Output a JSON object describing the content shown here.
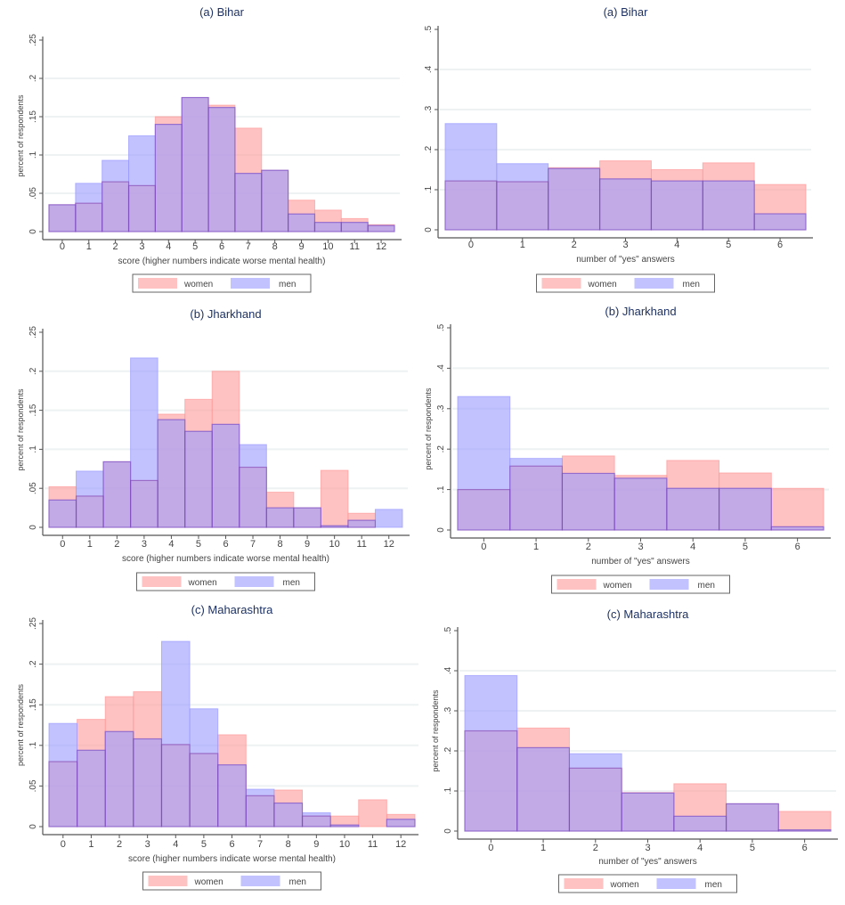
{
  "legend": {
    "women": "women",
    "men": "men"
  },
  "colors": {
    "women": "#ff9a9a",
    "men": "#9a9aff",
    "edge": "#7b3fb0",
    "axis": "#555555",
    "title": "#1e3264",
    "grid": "#eef2f2"
  },
  "chart_data": [
    {
      "type": "bar",
      "id": "bihar-score",
      "title": "(a) Bihar",
      "xlabel": "score (higher numbers indicate worse mental health)",
      "ylabel": "percent of respondents",
      "categories": [
        "0",
        "1",
        "2",
        "3",
        "4",
        "5",
        "6",
        "7",
        "8",
        "9",
        "10",
        "11",
        "12"
      ],
      "yticks": [
        "0",
        ".05",
        ".1",
        ".15",
        ".2",
        ".25"
      ],
      "ylim": [
        0,
        0.25
      ],
      "grid": true,
      "legend_position": "bottom",
      "series": [
        {
          "name": "women",
          "values": [
            0.035,
            0.037,
            0.065,
            0.06,
            0.15,
            0.175,
            0.165,
            0.135,
            0.08,
            0.041,
            0.028,
            0.017,
            0.009
          ]
        },
        {
          "name": "men",
          "values": [
            0.035,
            0.063,
            0.093,
            0.125,
            0.14,
            0.175,
            0.162,
            0.076,
            0.08,
            0.023,
            0.012,
            0.012,
            0.008
          ]
        }
      ]
    },
    {
      "type": "bar",
      "id": "bihar-yes",
      "title": "(a) Bihar",
      "xlabel": "number of \"yes\" answers",
      "ylabel": "percent of respondents",
      "categories": [
        "0",
        "1",
        "2",
        "3",
        "4",
        "5",
        "6"
      ],
      "yticks": [
        "0",
        ".1",
        ".2",
        ".3",
        ".4",
        ".5"
      ],
      "ylim": [
        0,
        0.5
      ],
      "grid": true,
      "legend_position": "bottom",
      "series": [
        {
          "name": "women",
          "values": [
            0.122,
            0.12,
            0.155,
            0.172,
            0.15,
            0.167,
            0.113
          ]
        },
        {
          "name": "men",
          "values": [
            0.265,
            0.165,
            0.153,
            0.127,
            0.122,
            0.122,
            0.04
          ]
        }
      ]
    },
    {
      "type": "bar",
      "id": "jharkhand-score",
      "title": "(b) Jharkhand",
      "xlabel": "score (higher numbers indicate worse mental health)",
      "ylabel": "percent of respondents",
      "categories": [
        "0",
        "1",
        "2",
        "3",
        "4",
        "5",
        "6",
        "7",
        "8",
        "9",
        "10",
        "11",
        "12"
      ],
      "yticks": [
        "0",
        ".05",
        ".1",
        ".15",
        ".2",
        ".25"
      ],
      "ylim": [
        0,
        0.25
      ],
      "grid": true,
      "legend_position": "bottom",
      "series": [
        {
          "name": "women",
          "values": [
            0.052,
            0.04,
            0.084,
            0.06,
            0.145,
            0.164,
            0.2,
            0.077,
            0.045,
            0.025,
            0.073,
            0.018,
            0.0
          ]
        },
        {
          "name": "men",
          "values": [
            0.035,
            0.072,
            0.084,
            0.217,
            0.138,
            0.123,
            0.132,
            0.106,
            0.025,
            0.025,
            0.002,
            0.009,
            0.023
          ]
        }
      ]
    },
    {
      "type": "bar",
      "id": "jharkhand-yes",
      "title": "(b) Jharkhand",
      "xlabel": "number of \"yes\" answers",
      "ylabel": "percent of respondents",
      "categories": [
        "0",
        "1",
        "2",
        "3",
        "4",
        "5",
        "6"
      ],
      "yticks": [
        "0",
        ".1",
        ".2",
        ".3",
        ".4",
        ".5"
      ],
      "ylim": [
        0,
        0.5
      ],
      "grid": true,
      "legend_position": "bottom",
      "series": [
        {
          "name": "women",
          "values": [
            0.1,
            0.158,
            0.183,
            0.135,
            0.172,
            0.141,
            0.103
          ]
        },
        {
          "name": "men",
          "values": [
            0.33,
            0.177,
            0.14,
            0.128,
            0.103,
            0.103,
            0.008
          ]
        }
      ]
    },
    {
      "type": "bar",
      "id": "maharashtra-score",
      "title": "(c) Maharashtra",
      "xlabel": "score (higher numbers indicate worse mental health)",
      "ylabel": "percent of respondents",
      "categories": [
        "0",
        "1",
        "2",
        "3",
        "4",
        "5",
        "6",
        "7",
        "8",
        "9",
        "10",
        "11",
        "12"
      ],
      "yticks": [
        "0",
        ".05",
        ".1",
        ".15",
        ".2",
        ".25"
      ],
      "ylim": [
        0,
        0.25
      ],
      "grid": true,
      "legend_position": "bottom",
      "series": [
        {
          "name": "women",
          "values": [
            0.08,
            0.132,
            0.16,
            0.166,
            0.101,
            0.09,
            0.113,
            0.038,
            0.045,
            0.013,
            0.013,
            0.033,
            0.015
          ]
        },
        {
          "name": "men",
          "values": [
            0.127,
            0.094,
            0.117,
            0.108,
            0.228,
            0.145,
            0.076,
            0.046,
            0.029,
            0.017,
            0.002,
            0.0,
            0.009
          ]
        }
      ]
    },
    {
      "type": "bar",
      "id": "maharashtra-yes",
      "title": "(c) Maharashtra",
      "xlabel": "number of \"yes\" answers",
      "ylabel": "percent of respondents",
      "categories": [
        "0",
        "1",
        "2",
        "3",
        "4",
        "5",
        "6"
      ],
      "yticks": [
        "0",
        ".1",
        ".2",
        ".3",
        ".4",
        ".5"
      ],
      "ylim": [
        0,
        0.5
      ],
      "grid": true,
      "legend_position": "bottom",
      "series": [
        {
          "name": "women",
          "values": [
            0.25,
            0.257,
            0.157,
            0.096,
            0.118,
            0.068,
            0.049
          ]
        },
        {
          "name": "men",
          "values": [
            0.388,
            0.208,
            0.193,
            0.095,
            0.037,
            0.068,
            0.003
          ]
        }
      ]
    }
  ]
}
